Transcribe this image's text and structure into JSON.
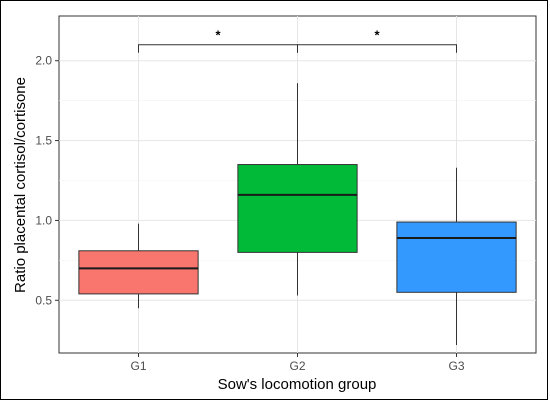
{
  "chart_data": {
    "type": "boxplot",
    "title": "",
    "xlabel": "Sow's locomotion group",
    "ylabel": "Ratio placental cortisol/cortisone",
    "ylim": [
      0.17,
      2.28
    ],
    "yticks": [
      0.5,
      1.0,
      1.5,
      2.0
    ],
    "ytick_labels": [
      "0.5",
      "1.0",
      "1.5",
      "2.0"
    ],
    "grid": true,
    "legend": "none",
    "categories": [
      "G1",
      "G2",
      "G3"
    ],
    "series": [
      {
        "category": "G1",
        "color": "#F8766D",
        "whisker_low": 0.45,
        "q1": 0.54,
        "median": 0.7,
        "q3": 0.81,
        "whisker_high": 0.98
      },
      {
        "category": "G2",
        "color": "#00BA38",
        "whisker_low": 0.53,
        "q1": 0.8,
        "median": 1.16,
        "q3": 1.35,
        "whisker_high": 1.86
      },
      {
        "category": "G3",
        "color": "#3399FF",
        "whisker_low": 0.22,
        "q1": 0.55,
        "median": 0.89,
        "q3": 0.99,
        "whisker_high": 1.33
      }
    ],
    "significance": [
      {
        "from": "G1",
        "to": "G2",
        "y": 2.1,
        "label": "*"
      },
      {
        "from": "G2",
        "to": "G3",
        "y": 2.1,
        "label": "*"
      }
    ]
  }
}
